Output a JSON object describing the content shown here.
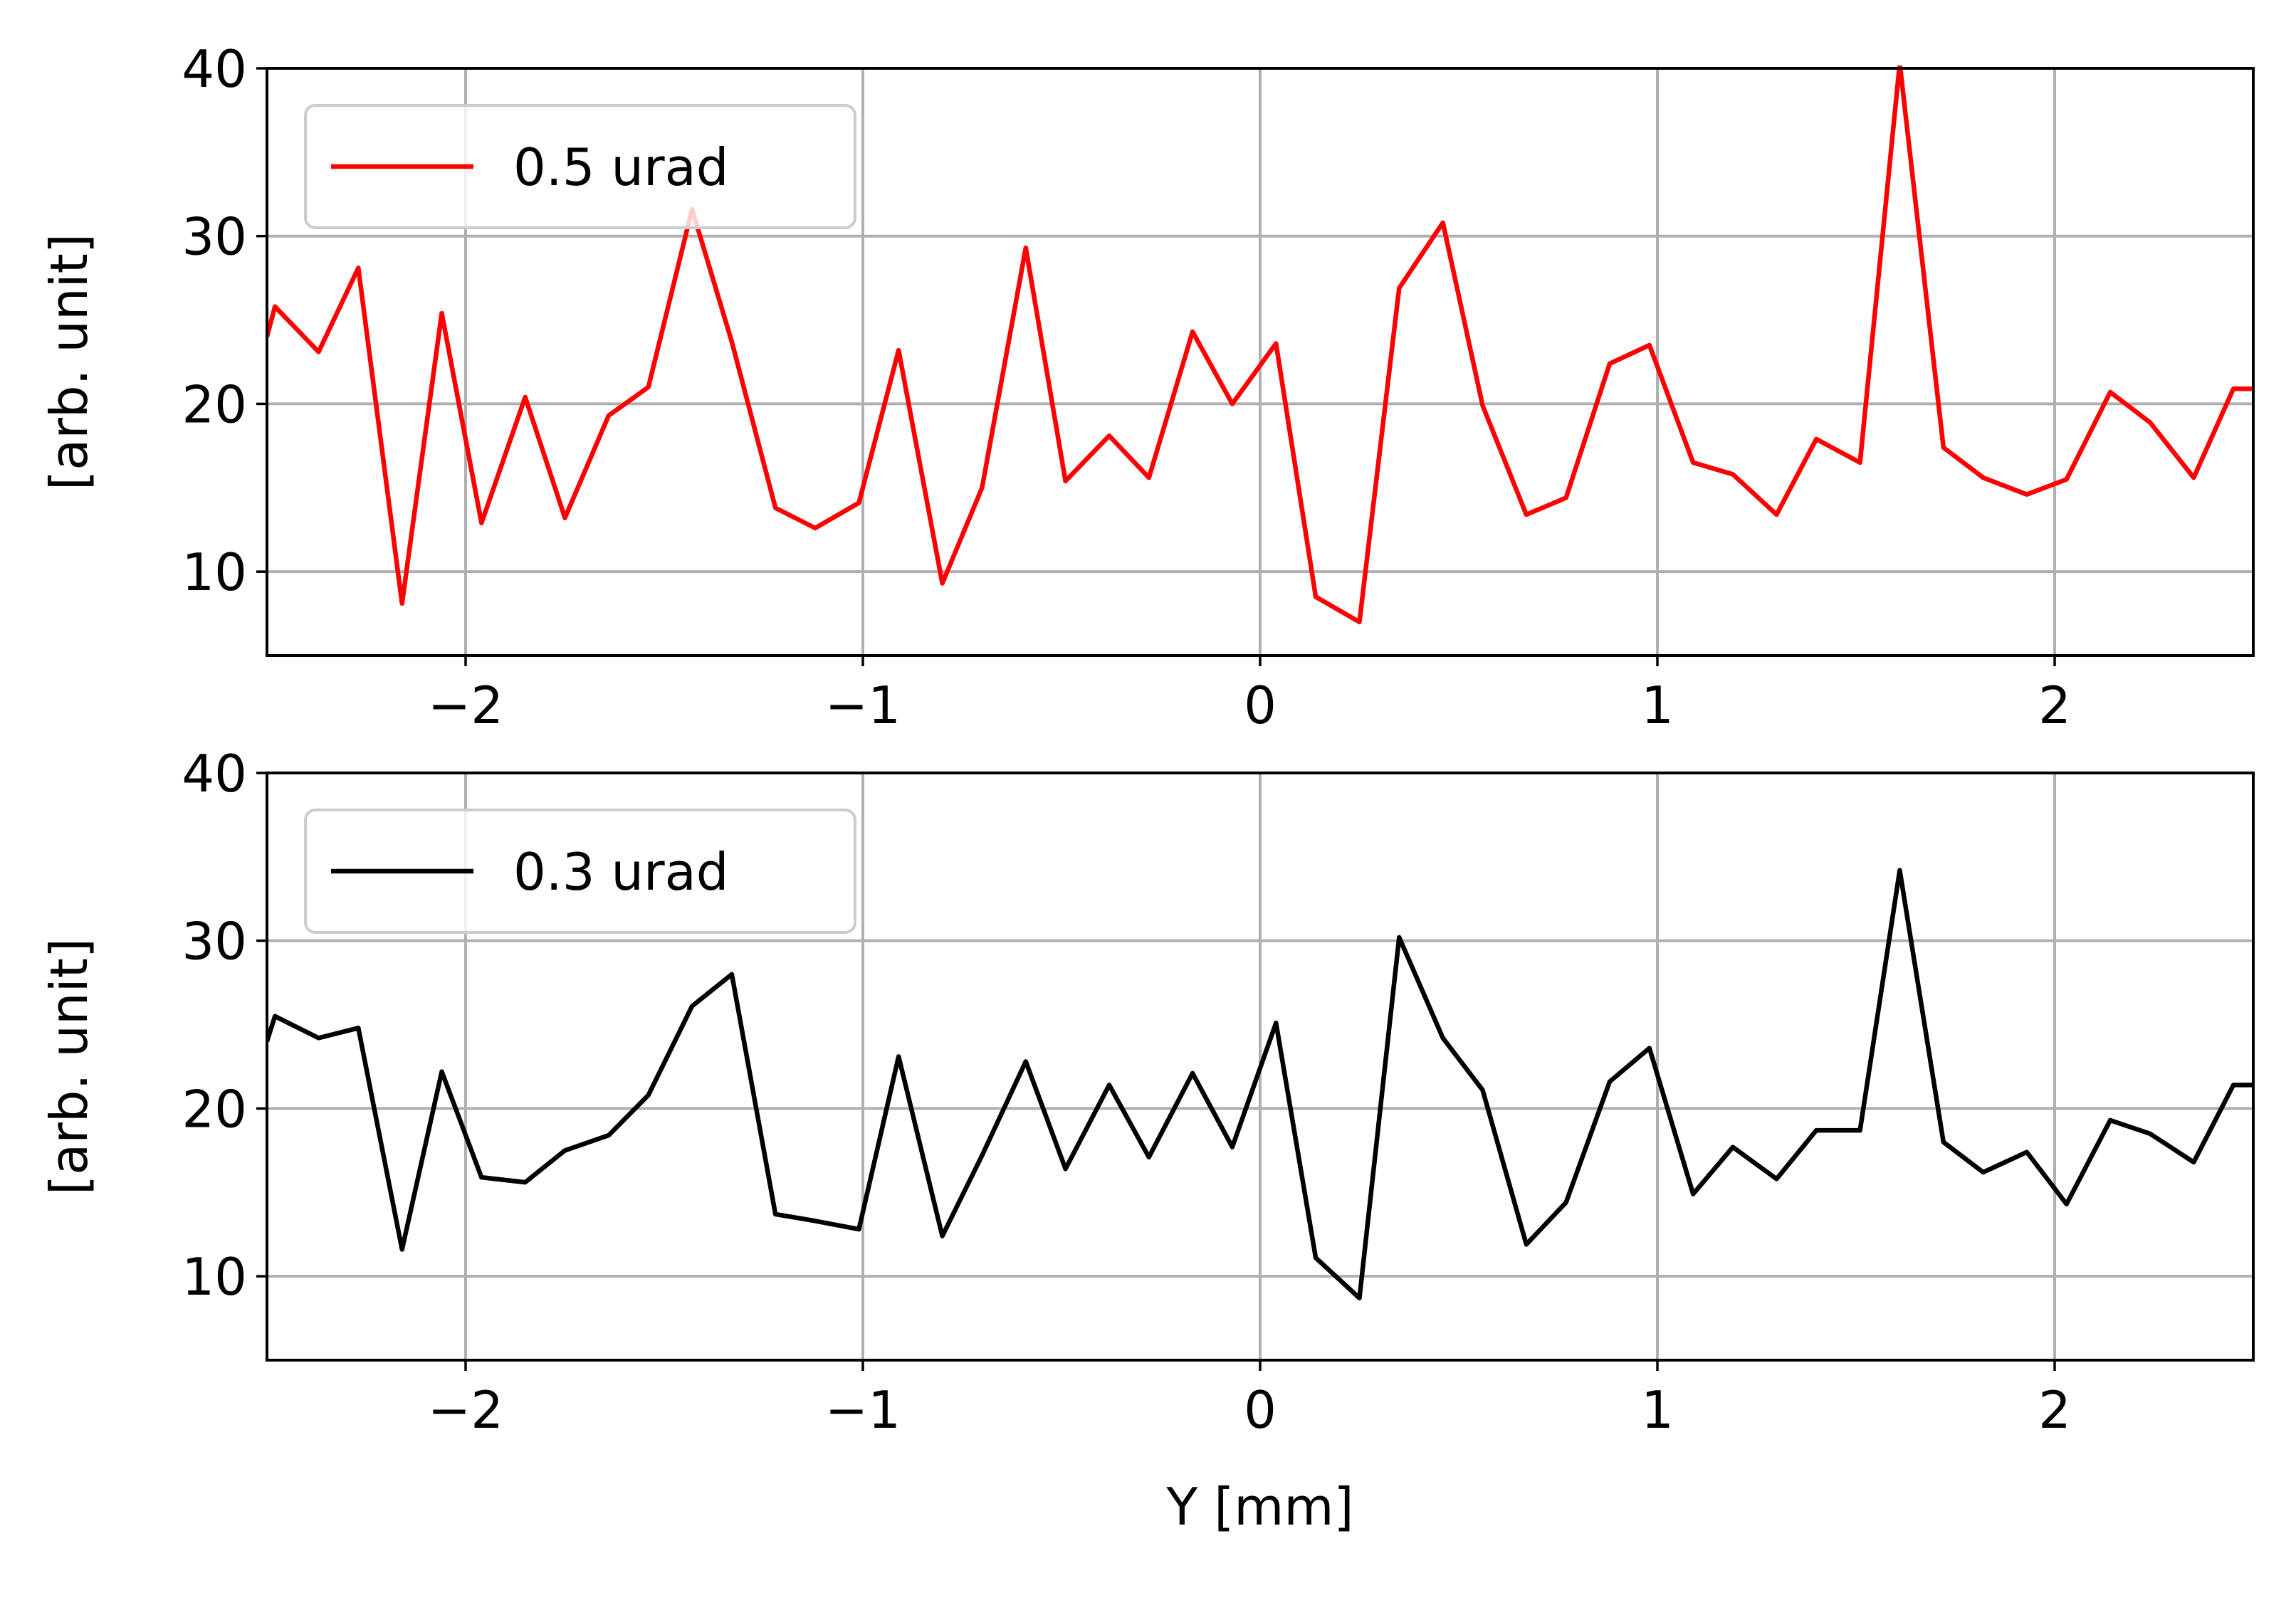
{
  "chart_data": [
    {
      "type": "line",
      "xlabel": "",
      "ylabel": "[arb. unit]",
      "xlim": [
        -2.5,
        2.5
      ],
      "ylim": [
        5,
        40
      ],
      "grid": true,
      "legend_position": "upper-left",
      "xticks": [
        -2,
        -1,
        0,
        1,
        2
      ],
      "xtick_labels": [
        "−2",
        "−1",
        "0",
        "1",
        "2"
      ],
      "yticks": [
        10,
        20,
        30,
        40
      ],
      "ytick_labels": [
        "10",
        "20",
        "30",
        "40"
      ],
      "series": [
        {
          "name": "0.5 urad",
          "color": "#ff0000",
          "x": [
            -2.5,
            -2.48,
            -2.37,
            -2.27,
            -2.16,
            -2.06,
            -1.96,
            -1.85,
            -1.75,
            -1.64,
            -1.54,
            -1.43,
            -1.33,
            -1.22,
            -1.12,
            -1.01,
            -0.91,
            -0.8,
            -0.7,
            -0.59,
            -0.49,
            -0.38,
            -0.28,
            -0.17,
            -0.07,
            0.04,
            0.14,
            0.25,
            0.35,
            0.46,
            0.56,
            0.67,
            0.77,
            0.88,
            0.98,
            1.09,
            1.19,
            1.3,
            1.4,
            1.51,
            1.61,
            1.72,
            1.82,
            1.93,
            2.03,
            2.14,
            2.24,
            2.35,
            2.45,
            2.5
          ],
          "y": [
            24,
            25.8,
            23.1,
            28.1,
            8.1,
            25.4,
            12.9,
            20.4,
            13.2,
            19.3,
            21.0,
            31.6,
            23.7,
            13.8,
            12.6,
            14.1,
            23.2,
            9.3,
            15.0,
            29.3,
            15.4,
            18.1,
            15.6,
            24.3,
            20.0,
            23.6,
            8.5,
            7.0,
            26.9,
            30.8,
            19.9,
            13.4,
            14.4,
            22.4,
            23.5,
            16.5,
            15.8,
            13.4,
            17.9,
            16.5,
            40.3,
            17.4,
            15.6,
            14.6,
            15.5,
            20.7,
            18.9,
            15.6,
            20.9,
            20.9
          ]
        }
      ]
    },
    {
      "type": "line",
      "xlabel": "Y [mm]",
      "ylabel": "[arb. unit]",
      "xlim": [
        -2.5,
        2.5
      ],
      "ylim": [
        5,
        40
      ],
      "grid": true,
      "legend_position": "upper-left",
      "xticks": [
        -2,
        -1,
        0,
        1,
        2
      ],
      "xtick_labels": [
        "−2",
        "−1",
        "0",
        "1",
        "2"
      ],
      "yticks": [
        10,
        20,
        30,
        40
      ],
      "ytick_labels": [
        "10",
        "20",
        "30",
        "40"
      ],
      "series": [
        {
          "name": "0.3 urad",
          "color": "#000000",
          "x": [
            -2.5,
            -2.48,
            -2.37,
            -2.27,
            -2.16,
            -2.06,
            -1.96,
            -1.85,
            -1.75,
            -1.64,
            -1.54,
            -1.43,
            -1.33,
            -1.22,
            -1.12,
            -1.01,
            -0.91,
            -0.8,
            -0.7,
            -0.59,
            -0.49,
            -0.38,
            -0.28,
            -0.17,
            -0.07,
            0.04,
            0.14,
            0.25,
            0.35,
            0.46,
            0.56,
            0.67,
            0.77,
            0.88,
            0.98,
            1.09,
            1.19,
            1.3,
            1.4,
            1.51,
            1.61,
            1.72,
            1.82,
            1.93,
            2.03,
            2.14,
            2.24,
            2.35,
            2.45,
            2.5
          ],
          "y": [
            24,
            25.5,
            24.2,
            24.8,
            11.6,
            22.2,
            15.9,
            15.6,
            17.5,
            18.4,
            20.8,
            26.1,
            28.0,
            13.7,
            13.3,
            12.8,
            23.1,
            12.4,
            17.2,
            22.8,
            16.4,
            21.4,
            17.1,
            22.1,
            17.7,
            25.1,
            11.1,
            8.7,
            30.2,
            24.2,
            21.1,
            11.9,
            14.4,
            21.6,
            23.6,
            14.9,
            17.7,
            15.8,
            18.7,
            18.7,
            34.2,
            18.0,
            16.2,
            17.4,
            14.3,
            19.3,
            18.5,
            16.8,
            21.4,
            21.4
          ]
        }
      ]
    }
  ]
}
